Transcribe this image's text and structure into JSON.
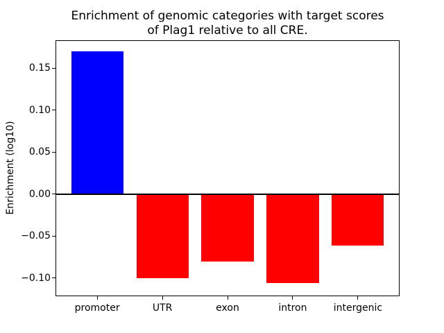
{
  "chart_data": {
    "type": "bar",
    "title_lines": [
      "Enrichment of genomic categories with target scores",
      "of Plag1 relative to all CRE."
    ],
    "title": "Enrichment of genomic categories with target scores of Plag1 relative to all CRE.",
    "xlabel": "",
    "ylabel": "Enrichment (log10)",
    "categories": [
      "promoter",
      "UTR",
      "exon",
      "intron",
      "intergenic"
    ],
    "values": [
      0.17,
      -0.1,
      -0.08,
      -0.106,
      -0.061
    ],
    "bar_colors": [
      "#0000ff",
      "#ff0000",
      "#ff0000",
      "#ff0000",
      "#ff0000"
    ],
    "yticks": [
      {
        "value": 0.15,
        "label": "0.15"
      },
      {
        "value": 0.1,
        "label": "0.10"
      },
      {
        "value": 0.05,
        "label": "0.05"
      },
      {
        "value": 0.0,
        "label": "0.00"
      },
      {
        "value": -0.05,
        "label": "−0.05"
      },
      {
        "value": -0.1,
        "label": "−0.10"
      }
    ],
    "ylim": [
      -0.1216,
      0.1834
    ],
    "xlim": [
      -0.64,
      4.64
    ],
    "bar_width": 0.8,
    "zero_line": true,
    "zero_line_color": "#000000",
    "grid": false,
    "legend_position": "none",
    "background_color": "#ffffff",
    "axis_color": "#000000"
  }
}
